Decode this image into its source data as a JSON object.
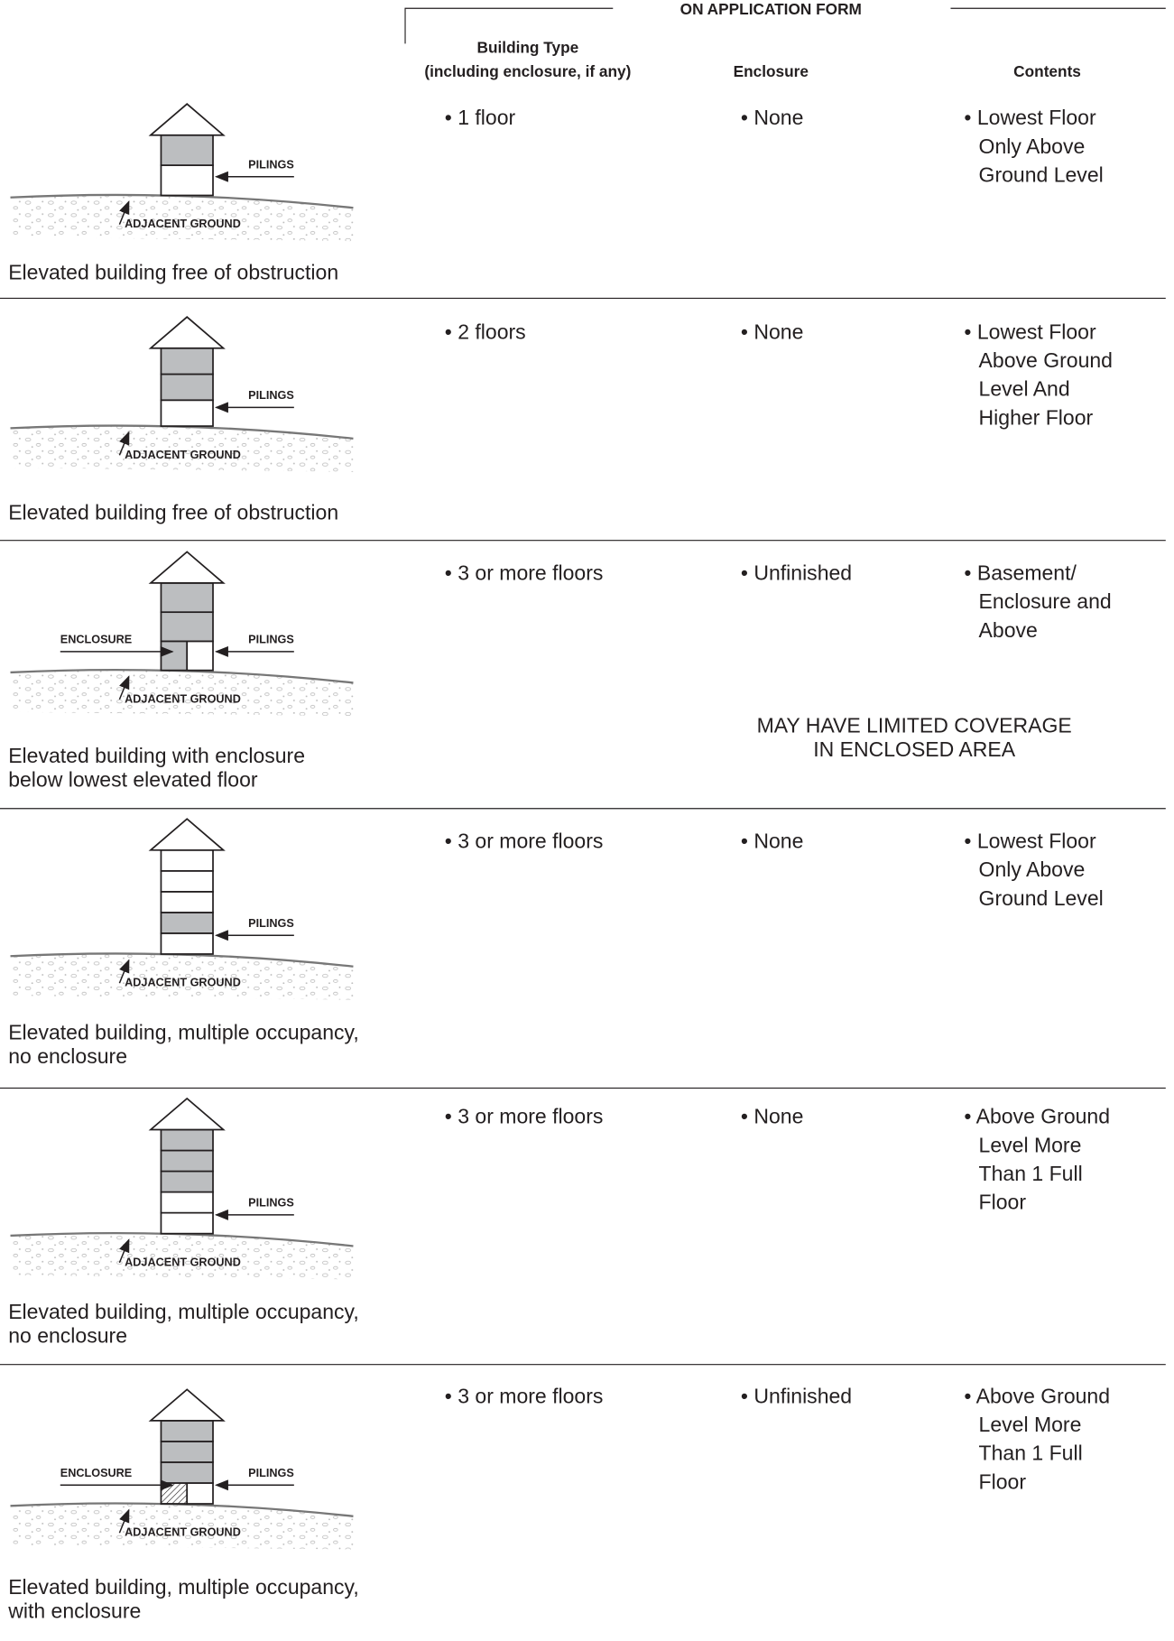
{
  "header": {
    "title": "ON APPLICATION FORM",
    "building_type": [
      "Building Type",
      "(including enclosure, if any)"
    ],
    "enclosure": "Enclosure",
    "contents": "Contents"
  },
  "rows": [
    {
      "diagram": {
        "pilings": "PILINGS",
        "ground": "ADJACENT GROUND"
      },
      "caption": [
        "Elevated building free of obstruction"
      ],
      "building_type": "• 1 floor",
      "enclosure": "• None",
      "contents": [
        "• Lowest Floor",
        "Only Above",
        "Ground Level"
      ]
    },
    {
      "diagram": {
        "pilings": "PILINGS",
        "ground": "ADJACENT GROUND"
      },
      "caption": [
        "Elevated building free of obstruction"
      ],
      "building_type": "• 2 floors",
      "enclosure": "• None",
      "contents": [
        "• Lowest Floor",
        "Above Ground",
        "Level And",
        "Higher Floor"
      ]
    },
    {
      "diagram": {
        "enclosure": "ENCLOSURE",
        "pilings": "PILINGS",
        "ground": "ADJACENT GROUND"
      },
      "caption": [
        "Elevated building with enclosure",
        "below lowest elevated floor"
      ],
      "building_type": "• 3 or more floors",
      "enclosure": "• Unfinished",
      "contents": [
        "• Basement/",
        "Enclosure and",
        "Above"
      ],
      "note": [
        "MAY HAVE LIMITED COVERAGE",
        "IN ENCLOSED AREA"
      ]
    },
    {
      "diagram": {
        "pilings": "PILINGS",
        "ground": "ADJACENT GROUND"
      },
      "caption": [
        "Elevated building, multiple occupancy,",
        "no enclosure"
      ],
      "building_type": "• 3 or more floors",
      "enclosure": "• None",
      "contents": [
        "• Lowest Floor",
        "Only Above",
        "Ground Level"
      ]
    },
    {
      "diagram": {
        "pilings": "PILINGS",
        "ground": "ADJACENT GROUND"
      },
      "caption": [
        "Elevated building, multiple occupancy,",
        "no enclosure"
      ],
      "building_type": "• 3 or more floors",
      "enclosure": "• None",
      "contents": [
        "• Above Ground",
        "Level More",
        "Than 1 Full",
        "Floor"
      ]
    },
    {
      "diagram": {
        "enclosure": "ENCLOSURE",
        "pilings": "PILINGS",
        "ground": "ADJACENT GROUND"
      },
      "caption": [
        "Elevated building, multiple occupancy,",
        "with enclosure"
      ],
      "building_type": "• 3 or more floors",
      "enclosure": "• Unfinished",
      "contents": [
        "• Above Ground",
        "Level More",
        "Than 1 Full",
        "Floor"
      ]
    }
  ]
}
